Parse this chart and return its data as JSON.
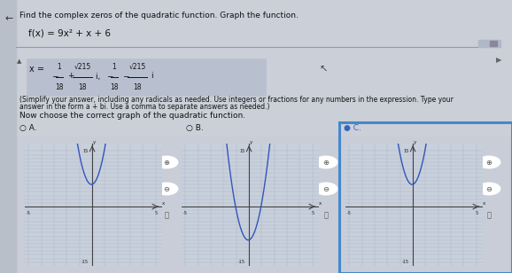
{
  "title_main": "Find the complex zeros of the quadratic function. Graph the function.",
  "function_str": "f(x) = 9x² +x + 6",
  "choose_label": "Now choose the correct graph of the quadratic function.",
  "simplify_line1": "(Simplify your answer, including any radicals as needed. Use integers or fractions for any numbers in the expression. Type your",
  "simplify_line2": "answer in the form a + bi. Use a comma to separate answers as needed.)",
  "bg_color": "#c8cdd8",
  "top_bg": "#c5cad5",
  "answer_box_bg": "#b8bfce",
  "graph_bg": "#c8d0dc",
  "graph_line_color": "#3355bb",
  "grid_color": "#aab0c0",
  "axis_color": "#444444",
  "selected_border": "#4488cc",
  "font_color": "#111111",
  "radio_color": "#555577",
  "selected_dot_color": "#3366bb",
  "a_coef": 9,
  "b_coef": 1,
  "c_coef": 6,
  "graph_A_c": 6,
  "graph_B_c": -9,
  "graph_C_c": 6,
  "x_range": [
    -5,
    5
  ],
  "y_range": [
    -15,
    15
  ]
}
